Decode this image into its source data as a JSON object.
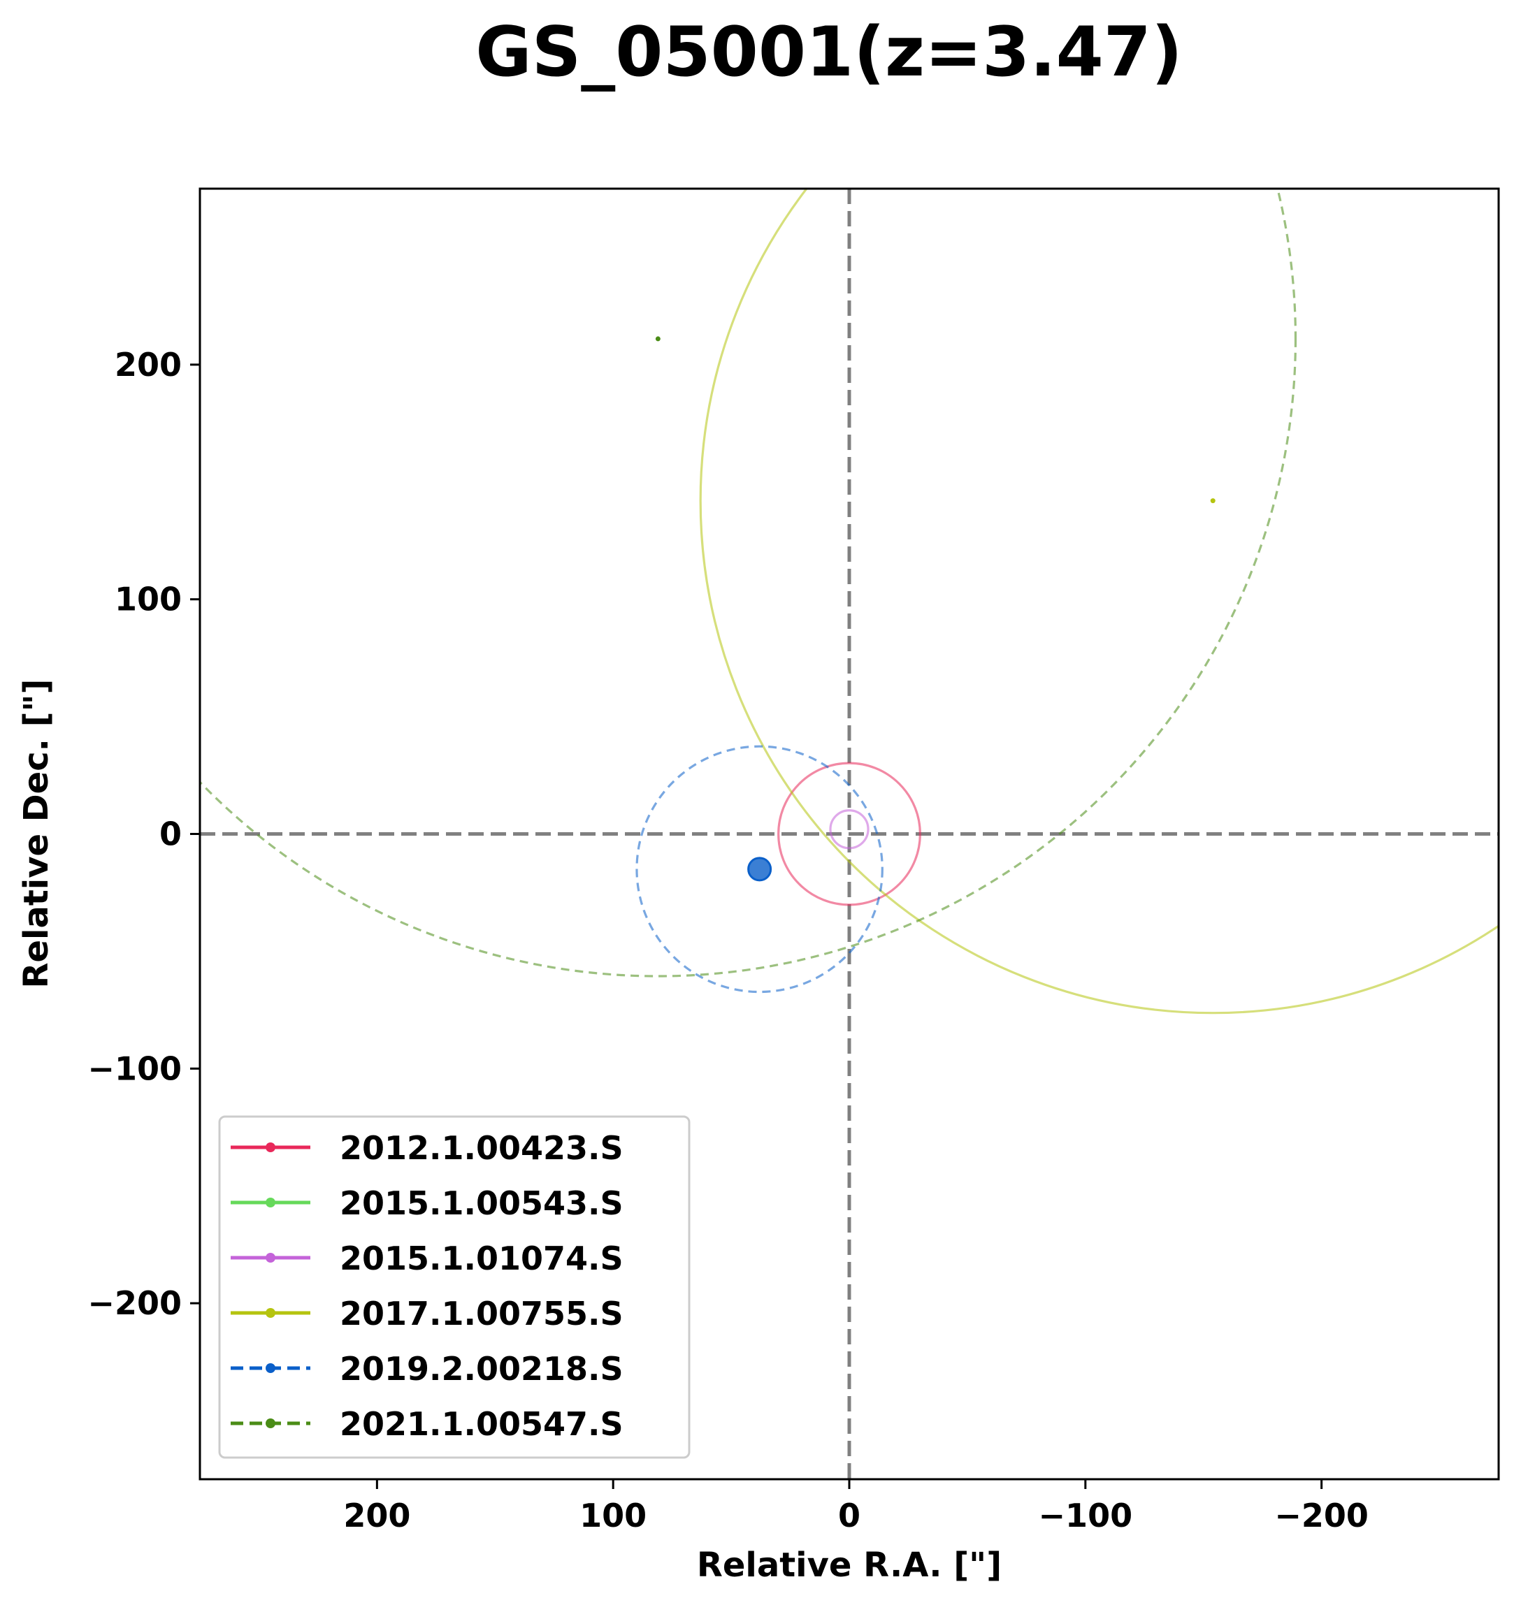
{
  "chart_data": {
    "type": "scatter",
    "title": "GS_05001(z=3.47)",
    "xlabel": "Relative R.A. [\"]",
    "ylabel": "Relative Dec. [\"]",
    "xlim": [
      275,
      -275
    ],
    "ylim": [
      -275,
      275
    ],
    "x_inverted": true,
    "xticks": [
      200,
      100,
      0,
      -100,
      -200
    ],
    "yticks": [
      200,
      100,
      0,
      -100,
      -200
    ],
    "xtick_labels": [
      "200",
      "100",
      "0",
      "−100",
      "−200"
    ],
    "ytick_labels": [
      "200",
      "100",
      "0",
      "−100",
      "−200"
    ],
    "grid": false,
    "legend_position": "lower-left",
    "reference_lines": [
      {
        "orientation": "vertical",
        "x": 0,
        "color": "#808080",
        "style": "dashed"
      },
      {
        "orientation": "horizontal",
        "y": 0,
        "color": "#808080",
        "style": "dashed"
      }
    ],
    "series": [
      {
        "name": "2012.1.00423.S",
        "color": "#e8285a",
        "line_style": "solid",
        "center": {
          "x": 0,
          "y": 0
        },
        "radius": 30,
        "marker": "none"
      },
      {
        "name": "2015.1.00543.S",
        "color": "#66d95a",
        "line_style": "solid",
        "center": null,
        "radius": null,
        "marker": "none"
      },
      {
        "name": "2015.1.01074.S",
        "color": "#c463d9",
        "line_style": "solid",
        "center": {
          "x": 0,
          "y": 2
        },
        "radius": 8,
        "marker": "none"
      },
      {
        "name": "2017.1.00755.S",
        "color": "#b5c40f",
        "line_style": "solid",
        "center": {
          "x": -154,
          "y": 142
        },
        "radius": 217,
        "marker": "tiny-dot"
      },
      {
        "name": "2019.2.00218.S",
        "color": "#0a5fc9",
        "line_style": "dashed",
        "center": {
          "x": 38,
          "y": -15
        },
        "radius": 52,
        "marker": "large-dot"
      },
      {
        "name": "2021.1.00547.S",
        "color": "#4a8c16",
        "line_style": "dashed",
        "center": {
          "x": 81,
          "y": 211
        },
        "radius": 270,
        "marker": "tiny-dot"
      }
    ]
  }
}
